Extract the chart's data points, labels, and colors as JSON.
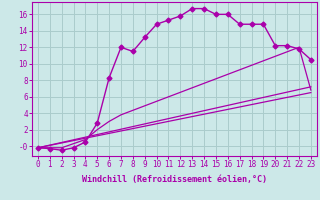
{
  "xlabel": "Windchill (Refroidissement éolien,°C)",
  "bg_color": "#cce8e8",
  "grid_color": "#aacccc",
  "line_color": "#aa00aa",
  "xlim": [
    -0.5,
    23.5
  ],
  "ylim": [
    -1.2,
    17.5
  ],
  "xticks": [
    0,
    1,
    2,
    3,
    4,
    5,
    6,
    7,
    8,
    9,
    10,
    11,
    12,
    13,
    14,
    15,
    16,
    17,
    18,
    19,
    20,
    21,
    22,
    23
  ],
  "yticks": [
    0,
    2,
    4,
    6,
    8,
    10,
    12,
    14,
    16
  ],
  "ytick_labels": [
    "-0",
    "2",
    "4",
    "6",
    "8",
    "10",
    "12",
    "14",
    "16"
  ],
  "line1_x": [
    0,
    1,
    2,
    3,
    4,
    5,
    6,
    7,
    8,
    9,
    10,
    11,
    12,
    13,
    14,
    15,
    16,
    17,
    18,
    19,
    20,
    21,
    22,
    23
  ],
  "line1_y": [
    -0.2,
    -0.3,
    -0.5,
    -0.2,
    0.5,
    2.8,
    8.3,
    12.0,
    11.5,
    13.2,
    14.8,
    15.3,
    15.8,
    16.7,
    16.7,
    16.0,
    16.0,
    14.8,
    14.8,
    14.8,
    12.2,
    12.2,
    11.8,
    10.5
  ],
  "line2_x": [
    0,
    23
  ],
  "line2_y": [
    -0.2,
    6.5
  ],
  "line3_x": [
    0,
    23
  ],
  "line3_y": [
    -0.2,
    7.2
  ],
  "line4_x": [
    0,
    1,
    2,
    3,
    4,
    5,
    6,
    7,
    22,
    23
  ],
  "line4_y": [
    -0.2,
    -0.2,
    -0.2,
    0.3,
    0.8,
    2.0,
    3.0,
    3.8,
    12.0,
    6.8
  ]
}
